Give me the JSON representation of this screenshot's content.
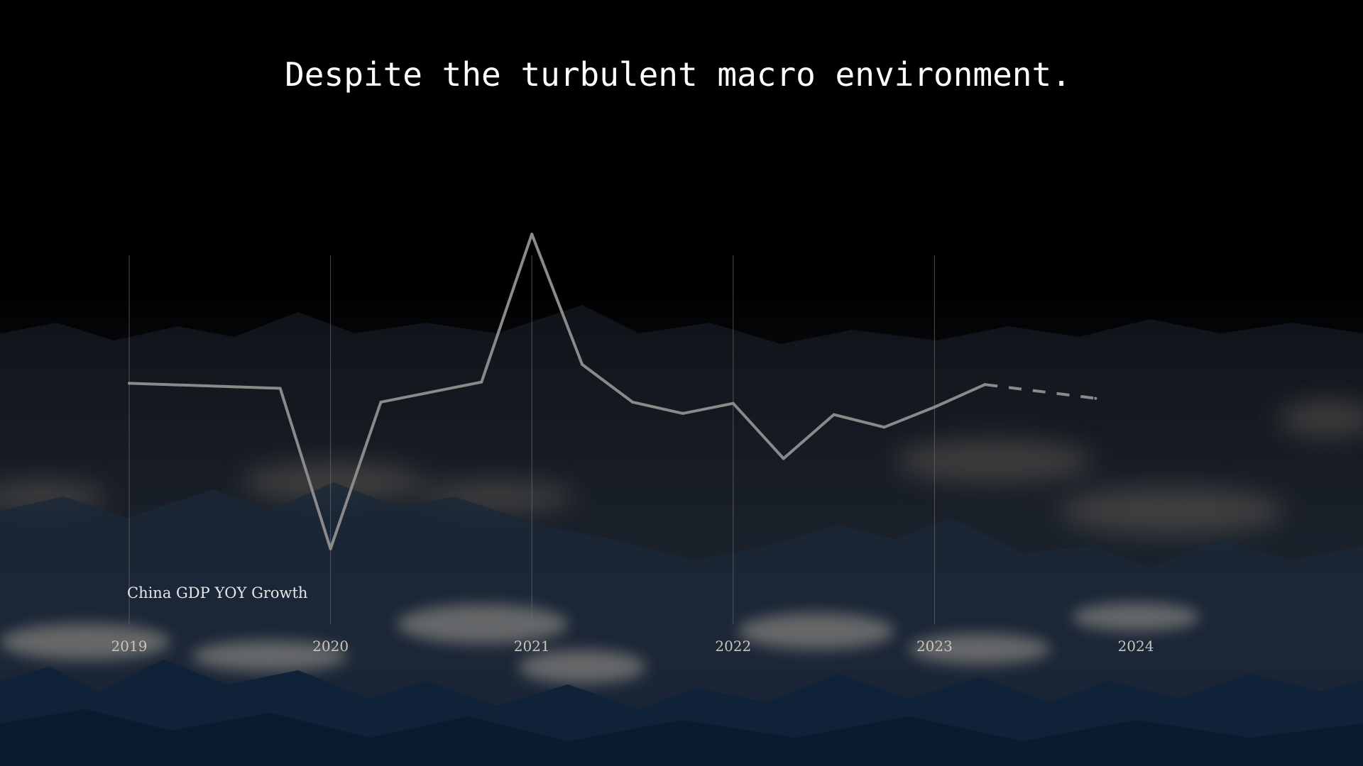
{
  "title": "Despite the turbulent macro environment.",
  "colors": {
    "line": "#8a8a8a",
    "gridline": "#6b6b6b",
    "tick_text": "#c9c4bb",
    "title_text": "#ffffff"
  },
  "chart_data": {
    "type": "line",
    "title": "",
    "series_label": "China GDP YOY Growth",
    "xlabel": "",
    "ylabel": "",
    "tick_labels": [
      "2019",
      "2020",
      "2021",
      "2022",
      "2023",
      "2024"
    ],
    "xlim": [
      2019,
      2024
    ],
    "ylim": [
      -8,
      20
    ],
    "grid": "vertical lines at years 2019–2023",
    "legend": "none",
    "series": [
      {
        "name": "China GDP YOY Growth",
        "style": "solid",
        "x": [
          2019.0,
          2019.75,
          2020.0,
          2020.25,
          2020.75,
          2021.0,
          2021.25,
          2021.5,
          2021.75,
          2022.0,
          2022.25,
          2022.5,
          2022.75,
          2023.0,
          2023.25
        ],
        "y": [
          6.4,
          6.0,
          -6.8,
          4.9,
          6.5,
          18.3,
          7.9,
          4.9,
          4.0,
          4.8,
          0.4,
          3.9,
          2.9,
          4.5,
          6.3
        ]
      },
      {
        "name": "",
        "style": "dashed",
        "x": [
          2023.25,
          2023.8
        ],
        "y": [
          6.3,
          5.2
        ]
      }
    ]
  }
}
